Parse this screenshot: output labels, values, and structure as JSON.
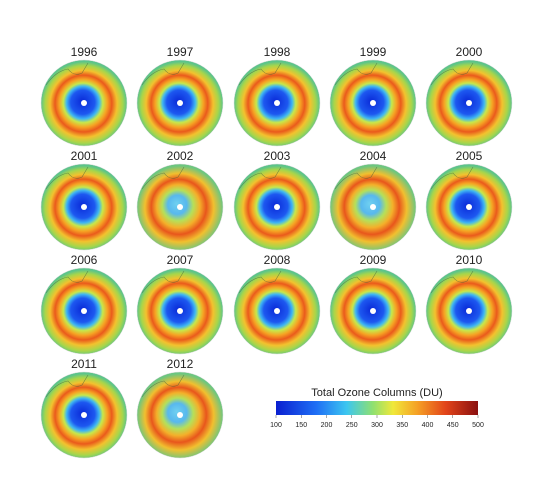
{
  "panels": [
    "1996",
    "1997",
    "1998",
    "1999",
    "2000",
    "2001",
    "2002",
    "2003",
    "2004",
    "2005",
    "2006",
    "2007",
    "2008",
    "2009",
    "2010",
    "2011",
    "2012"
  ],
  "colorbar": {
    "title": "Total Ozone Columns (DU)",
    "lim": [
      100,
      500
    ],
    "ticks": [
      100,
      150,
      200,
      250,
      300,
      350,
      400,
      450,
      500
    ]
  }
}
